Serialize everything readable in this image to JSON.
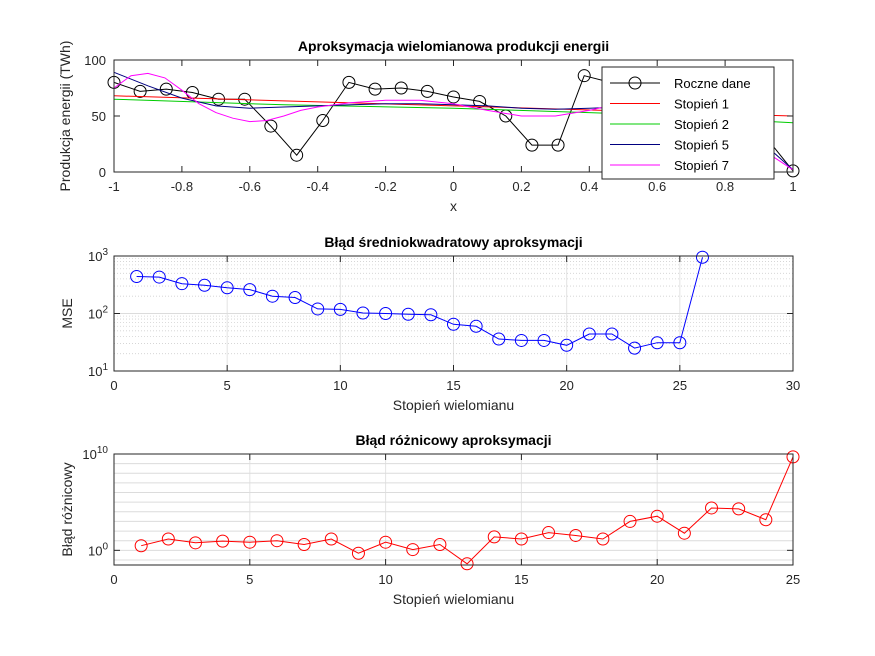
{
  "chart_data": [
    {
      "type": "line",
      "title": "Aproksymacja wielomianowa produkcji energii",
      "xlabel": "x",
      "ylabel": "Produkcja energii (TWh)",
      "xlim": [
        -1,
        1
      ],
      "ylim": [
        0,
        100
      ],
      "xticks": [
        -1,
        -0.8,
        -0.6,
        -0.4,
        -0.2,
        0,
        0.2,
        0.4,
        0.6,
        0.8,
        1
      ],
      "xtick_labels": [
        "-1",
        "-0.8",
        "-0.6",
        "-0.4",
        "-0.2",
        "0",
        "0.2",
        "0.4",
        "0.6",
        "0.8",
        "1"
      ],
      "yticks": [
        0,
        50,
        100
      ],
      "ytick_labels": [
        "0",
        "50",
        "100"
      ],
      "legend_position": "top-right",
      "series": [
        {
          "name": "Roczne dane",
          "color": "#000000",
          "marker": "circle",
          "x": [
            -1,
            -0.923,
            -0.846,
            -0.769,
            -0.692,
            -0.615,
            -0.538,
            -0.462,
            -0.385,
            -0.308,
            -0.231,
            -0.154,
            -0.077,
            0,
            0.077,
            0.154,
            0.231,
            0.308,
            0.385,
            0.462,
            0.538,
            0.615,
            0.692,
            0.769,
            0.846,
            0.923,
            1
          ],
          "y": [
            80,
            72,
            74,
            71,
            65,
            65,
            41,
            15,
            46,
            80,
            74,
            75,
            72,
            67,
            63,
            50,
            24,
            24,
            86,
            80,
            78,
            76,
            73,
            70,
            55,
            30,
            1
          ]
        },
        {
          "name": "Stopień 1",
          "color": "#ff0000",
          "x": [
            -1,
            1
          ],
          "y": [
            68,
            50
          ]
        },
        {
          "name": "Stopień 2",
          "color": "#00cc00",
          "x": [
            -1,
            -0.5,
            0,
            0.5,
            1
          ],
          "y": [
            65,
            60,
            57,
            52,
            44
          ]
        },
        {
          "name": "Stopień 5",
          "color": "#000080",
          "x": [
            -1,
            -0.9,
            -0.8,
            -0.7,
            -0.6,
            -0.5,
            -0.4,
            -0.3,
            -0.2,
            -0.1,
            0,
            0.1,
            0.2,
            0.3,
            0.4,
            0.5,
            0.6,
            0.7,
            0.8,
            0.9,
            1
          ],
          "y": [
            89,
            77,
            66,
            59,
            57,
            58,
            59,
            60,
            61,
            61,
            60,
            59,
            57,
            56,
            57,
            58,
            57,
            53,
            43,
            29,
            2
          ]
        },
        {
          "name": "Stopień 7",
          "color": "#ff00ff",
          "x": [
            -1,
            -0.95,
            -0.9,
            -0.85,
            -0.8,
            -0.75,
            -0.7,
            -0.65,
            -0.6,
            -0.55,
            -0.5,
            -0.45,
            -0.4,
            -0.35,
            -0.3,
            -0.2,
            -0.1,
            0,
            0.1,
            0.2,
            0.3,
            0.4,
            0.5,
            0.6,
            0.7,
            0.8,
            0.9,
            1
          ],
          "y": [
            75,
            86,
            88,
            84,
            73,
            61,
            53,
            48,
            45,
            46,
            50,
            55,
            58,
            60,
            62,
            64,
            64,
            61,
            55,
            50,
            50,
            55,
            62,
            65,
            58,
            42,
            22,
            2
          ]
        }
      ]
    },
    {
      "type": "line",
      "title": "Błąd średniokwadratowy aproksymacji",
      "xlabel": "Stopień wielomianu",
      "ylabel": "MSE",
      "yscale": "log",
      "grid": true,
      "xlim": [
        0,
        30
      ],
      "ylim": [
        10,
        1000
      ],
      "xticks": [
        0,
        5,
        10,
        15,
        20,
        25,
        30
      ],
      "xtick_labels": [
        "0",
        "5",
        "10",
        "15",
        "20",
        "25",
        "30"
      ],
      "yticks": [
        10,
        100,
        1000
      ],
      "ytick_labels": [
        {
          "base": "10",
          "exp": "1"
        },
        {
          "base": "10",
          "exp": "2"
        },
        {
          "base": "10",
          "exp": "3"
        }
      ],
      "series": [
        {
          "color": "#0000ff",
          "marker": "circle",
          "x": [
            1,
            2,
            3,
            4,
            5,
            6,
            7,
            8,
            9,
            10,
            11,
            12,
            13,
            14,
            15,
            16,
            17,
            18,
            19,
            20,
            21,
            22,
            23,
            24,
            25,
            26
          ],
          "y": [
            440,
            430,
            330,
            310,
            280,
            260,
            200,
            190,
            120,
            118,
            102,
            100,
            97,
            95,
            65,
            60,
            36,
            34,
            34,
            28,
            44,
            44,
            25,
            31,
            31,
            950
          ]
        }
      ]
    },
    {
      "type": "line",
      "title": "Błąd różnicowy aproksymacji",
      "xlabel": "Stopień wielomianu",
      "ylabel": "Błąd różnicowy",
      "yscale": "log",
      "grid": true,
      "xlim": [
        0,
        25
      ],
      "ylim": [
        0.03,
        10000000000
      ],
      "xticks": [
        0,
        5,
        10,
        15,
        20,
        25
      ],
      "xtick_labels": [
        "0",
        "5",
        "10",
        "15",
        "20",
        "25"
      ],
      "yticks": [
        1,
        10000000000
      ],
      "ytick_labels": [
        {
          "base": "10",
          "exp": "0"
        },
        {
          "base": "10",
          "exp": "10"
        }
      ],
      "series": [
        {
          "color": "#ff0000",
          "marker": "circle",
          "x": [
            1,
            2,
            3,
            4,
            5,
            6,
            7,
            8,
            9,
            10,
            11,
            12,
            13,
            14,
            15,
            16,
            17,
            18,
            19,
            20,
            21,
            22,
            23,
            24,
            25
          ],
          "y": [
            3,
            15,
            6,
            9,
            7,
            10,
            4,
            15,
            0.5,
            7,
            1.2,
            4,
            0.04,
            25,
            15,
            70,
            35,
            15,
            1000,
            3500,
            60,
            25000,
            20000,
            1500,
            5000000000
          ]
        }
      ]
    }
  ]
}
